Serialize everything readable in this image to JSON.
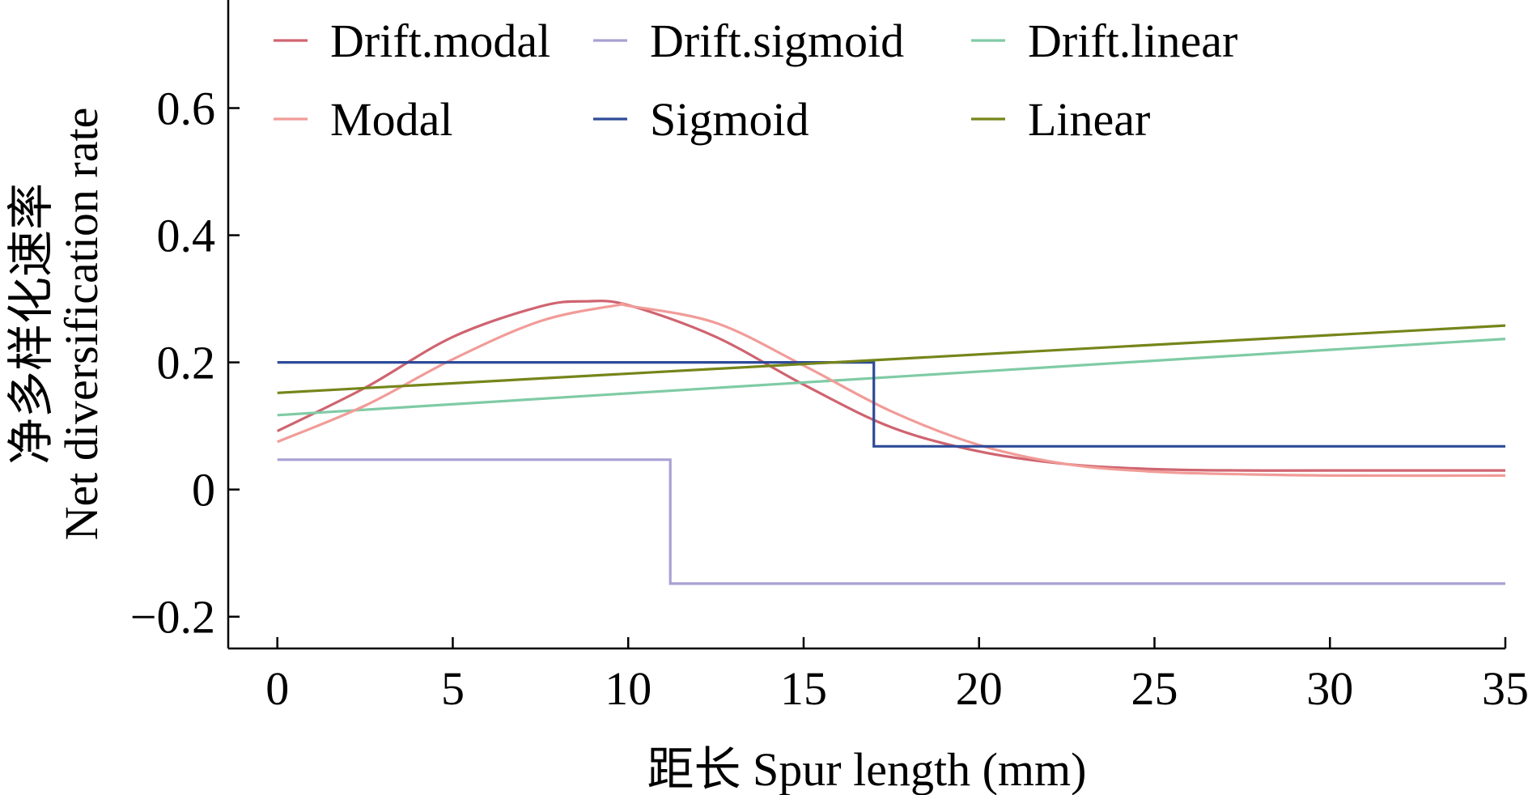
{
  "chart_data": {
    "type": "line",
    "title": "",
    "xlabel": "距长 Spur length (mm)",
    "ylabel_line1": "净多样化速率",
    "ylabel_line2": "Net diversification rate",
    "xlim": [
      -1.4,
      35
    ],
    "ylim": [
      -0.25,
      0.77
    ],
    "xticks": [
      0,
      5,
      10,
      15,
      20,
      25,
      30,
      35
    ],
    "xtick_labels": [
      "0",
      "5",
      "10",
      "15",
      "20",
      "25",
      "30",
      "35"
    ],
    "yticks": [
      -0.2,
      0,
      0.2,
      0.4,
      0.6
    ],
    "ytick_labels": [
      "−0.2",
      "0",
      "0.2",
      "0.4",
      "0.6"
    ],
    "grid": false,
    "legend_position": "top",
    "series": [
      {
        "name": "Drift.modal",
        "color": "#cf6470",
        "kind": "modal",
        "x": [
          0,
          2.5,
          5,
          7.5,
          8.8,
          10,
          12.5,
          15,
          17.5,
          20,
          22.5,
          25,
          27.5,
          30,
          35
        ],
        "y": [
          0.092,
          0.16,
          0.24,
          0.288,
          0.296,
          0.29,
          0.24,
          0.165,
          0.098,
          0.06,
          0.04,
          0.032,
          0.03,
          0.03,
          0.03
        ]
      },
      {
        "name": "Drift.sigmoid",
        "color": "#a8a1d4",
        "kind": "step",
        "x": [
          0,
          11.2,
          11.2,
          35
        ],
        "y": [
          0.047,
          0.047,
          -0.148,
          -0.148
        ]
      },
      {
        "name": "Drift.linear",
        "color": "#7fcba5",
        "kind": "line",
        "x": [
          0,
          35
        ],
        "y": [
          0.117,
          0.237
        ]
      },
      {
        "name": "Modal",
        "color": "#f19c98",
        "kind": "modal",
        "x": [
          0,
          2.5,
          5,
          7.5,
          9.7,
          10,
          12.5,
          15,
          17.5,
          20,
          22.5,
          25,
          27.5,
          30,
          35
        ],
        "y": [
          0.075,
          0.132,
          0.205,
          0.265,
          0.29,
          0.289,
          0.262,
          0.195,
          0.123,
          0.07,
          0.04,
          0.028,
          0.024,
          0.022,
          0.022
        ]
      },
      {
        "name": "Sigmoid",
        "color": "#2f4b98",
        "kind": "step",
        "x": [
          0,
          17,
          17,
          35
        ],
        "y": [
          0.2,
          0.2,
          0.068,
          0.068
        ]
      },
      {
        "name": "Linear",
        "color": "#76851a",
        "kind": "line",
        "x": [
          0,
          35
        ],
        "y": [
          0.152,
          0.258
        ]
      }
    ]
  }
}
